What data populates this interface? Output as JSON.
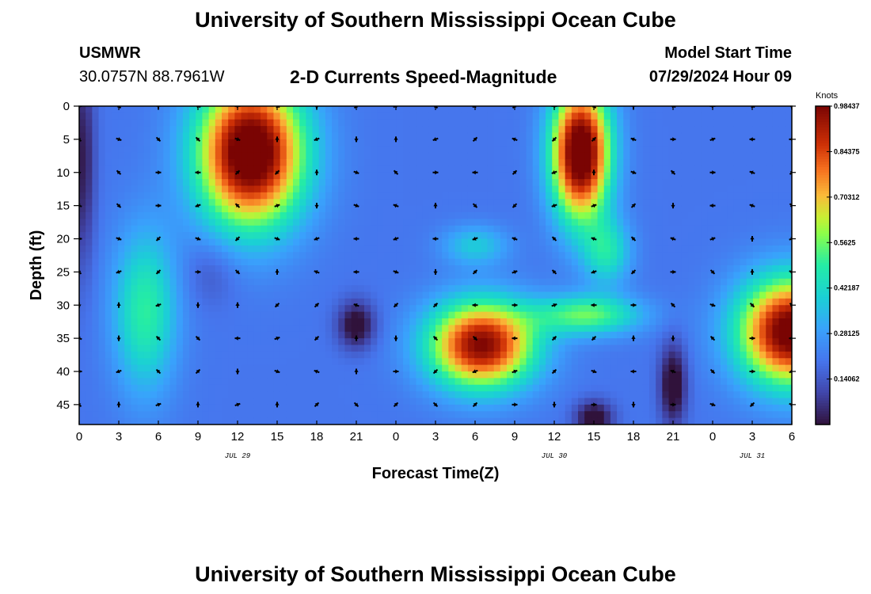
{
  "title": "University of Southern Mississippi Ocean Cube",
  "station": {
    "id": "USMWR",
    "coords": "30.0757N  88.7961W"
  },
  "subtitle": "2-D Currents Speed-Magnitude",
  "model_start": {
    "label": "Model Start Time",
    "value": "07/29/2024 Hour 09"
  },
  "bottom_title": "University of Southern Mississippi Ocean Cube",
  "colors": {
    "arrow": "#000000",
    "frame": "#000000"
  },
  "chart_data": {
    "type": "heatmap",
    "title": "2-D Currents Speed-Magnitude",
    "xlabel": "Forecast Time(Z)",
    "ylabel": "Depth (ft)",
    "x_tick_labels": [
      "0",
      "3",
      "6",
      "9",
      "12",
      "15",
      "18",
      "21",
      "0",
      "3",
      "6",
      "9",
      "12",
      "15",
      "18",
      "21",
      "0",
      "3",
      "6"
    ],
    "x_range_hours": [
      0,
      54
    ],
    "date_labels": [
      {
        "text": "JUL 29",
        "hour": 12
      },
      {
        "text": "JUL 30",
        "hour": 36
      },
      {
        "text": "JUL 31",
        "hour": 51
      }
    ],
    "y_tick_labels": [
      "0",
      "5",
      "10",
      "15",
      "20",
      "25",
      "30",
      "35",
      "40",
      "45"
    ],
    "ylim": [
      0,
      48
    ],
    "y_inverted": true,
    "colorbar": {
      "unit": "Knots",
      "tick_labels": [
        "0.98437",
        "0.84375",
        "0.70312",
        "0.5625",
        "0.42187",
        "0.28125",
        "0.14062"
      ],
      "range": [
        0,
        0.984375
      ]
    },
    "arrow_columns_hours": [
      0,
      3,
      6,
      9,
      12,
      15,
      18,
      21,
      24,
      27,
      30,
      33,
      36,
      39,
      42,
      45,
      48,
      51,
      54
    ],
    "arrow_rows_depth_ft": [
      0,
      5,
      10,
      15,
      20,
      25,
      30,
      35,
      40,
      45
    ]
  }
}
